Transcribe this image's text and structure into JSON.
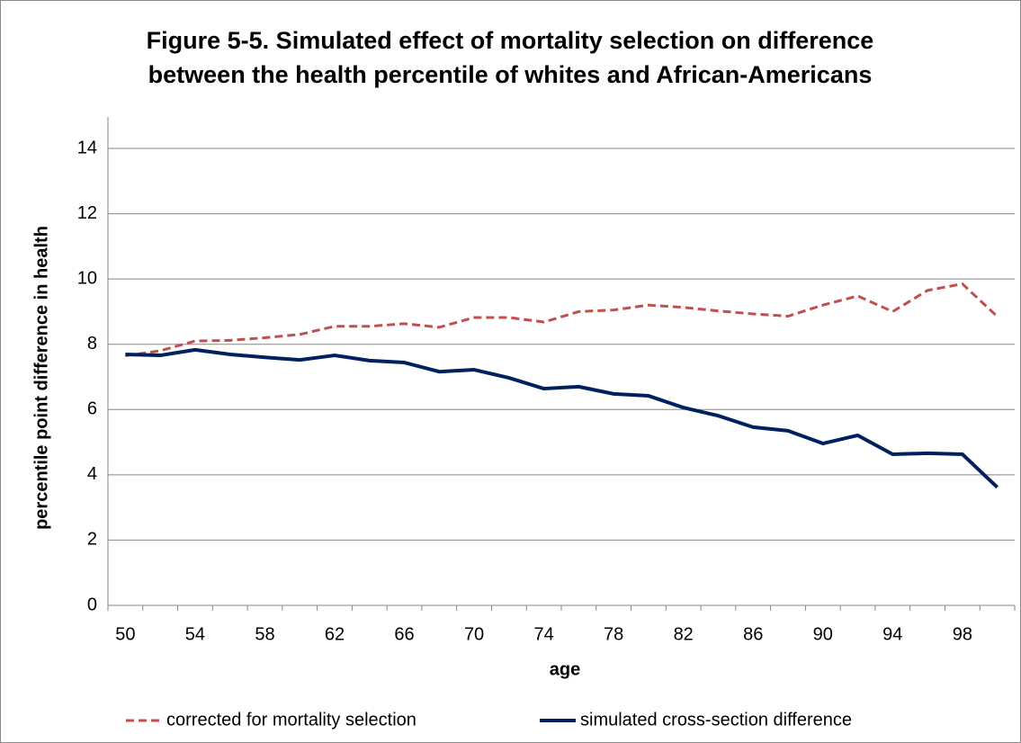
{
  "chart_data": {
    "type": "line",
    "title": [
      "Figure 5-5. Simulated effect of mortality selection on difference",
      "between the health percentile of whites and African-Americans"
    ],
    "x_label": "age",
    "y_label": "percentile point difference in health",
    "categories": [
      "50",
      null,
      "54",
      null,
      "58",
      null,
      "62",
      null,
      "66",
      null,
      "70",
      null,
      "74",
      null,
      "78",
      null,
      "82",
      null,
      "86",
      null,
      "90",
      null,
      "94",
      null,
      "98",
      null
    ],
    "series": [
      {
        "name": "corrected for mortality selection",
        "color": "#c0504d",
        "dash": true,
        "values": [
          7.65,
          7.8,
          8.1,
          8.12,
          8.2,
          8.3,
          8.55,
          8.55,
          8.63,
          8.52,
          8.82,
          8.82,
          8.68,
          9.0,
          9.05,
          9.2,
          9.13,
          9.02,
          8.93,
          8.86,
          9.2,
          9.48,
          9.0,
          9.65,
          9.85,
          8.85
        ]
      },
      {
        "name": "simulated cross-section difference",
        "color": "#002060",
        "dash": false,
        "values": [
          7.69,
          7.66,
          7.83,
          7.69,
          7.6,
          7.52,
          7.66,
          7.5,
          7.44,
          7.16,
          7.22,
          6.97,
          6.64,
          6.7,
          6.48,
          6.42,
          6.06,
          5.81,
          5.46,
          5.35,
          4.96,
          5.21,
          4.63,
          4.66,
          4.63,
          3.62
        ]
      }
    ],
    "ylim": [
      0,
      14
    ],
    "yticks": [
      0,
      2,
      4,
      6,
      8,
      10,
      12,
      14
    ],
    "grid": true,
    "legend": "bottom"
  }
}
